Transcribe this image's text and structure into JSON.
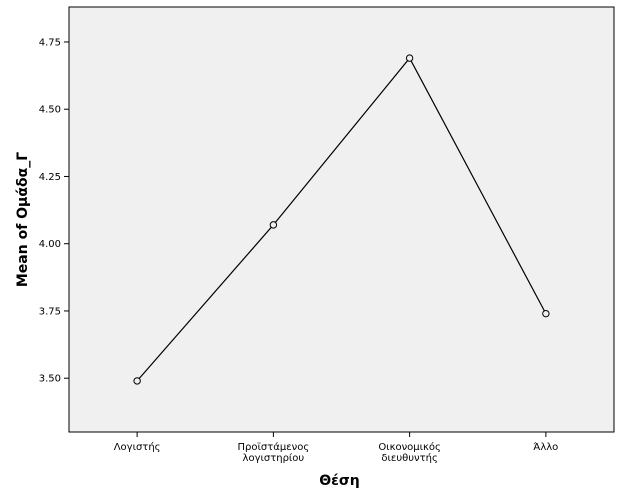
{
  "chart_data": {
    "type": "line",
    "xlabel": "Θέση",
    "ylabel": "Mean of Ομάδα_Γ",
    "categories": [
      [
        "Λογιστής"
      ],
      [
        "Προϊστάμενος",
        "λογιστηρίου"
      ],
      [
        "Οικονομικός",
        "διευθυντής"
      ],
      [
        "Άλλο"
      ]
    ],
    "values": [
      3.49,
      4.07,
      4.69,
      3.74
    ],
    "ylim": [
      3.3,
      4.88
    ],
    "yticks": [
      "3.50",
      "3.75",
      "4.00",
      "4.25",
      "4.50",
      "4.75"
    ],
    "grid": false,
    "marker": "open-circle",
    "colors": {
      "plot_background": "#f0f0f0",
      "line": "#000000",
      "axis": "#000000"
    }
  }
}
